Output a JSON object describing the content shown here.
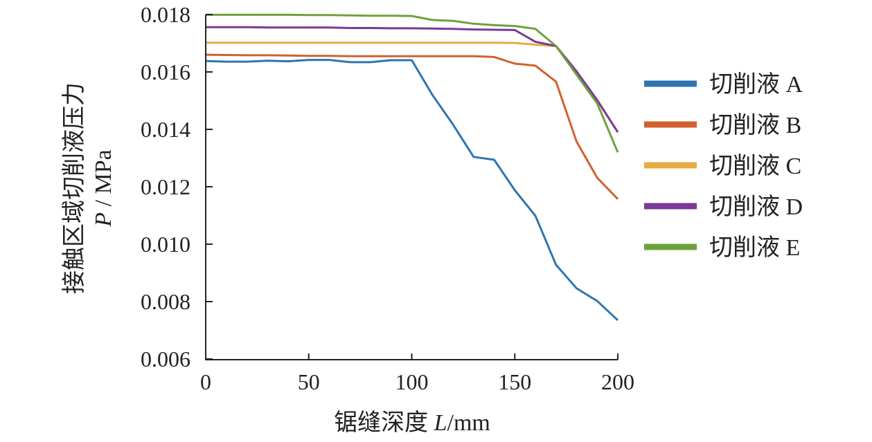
{
  "chart_data": {
    "type": "line",
    "title": "",
    "xlabel": "锯缝深度 L/mm",
    "xlabel_main": "锯缝深度 ",
    "xlabel_var": "L",
    "xlabel_unit": "/mm",
    "ylabel_line1": "接触区域切削液压力",
    "ylabel_var": "P",
    "ylabel_unit": " / MPa",
    "xlim": [
      0,
      200
    ],
    "ylim": [
      0.006,
      0.018
    ],
    "xticks": [
      "0",
      "50",
      "100",
      "150",
      "200"
    ],
    "xtick_values": [
      0,
      50,
      100,
      150,
      200
    ],
    "yticks": [
      "0.006",
      "0.008",
      "0.010",
      "0.012",
      "0.014",
      "0.016",
      "0.018"
    ],
    "ytick_values": [
      0.006,
      0.008,
      0.01,
      0.012,
      0.014,
      0.016,
      0.018
    ],
    "legend_position": "right",
    "x": [
      0,
      10,
      20,
      30,
      40,
      50,
      60,
      70,
      80,
      90,
      100,
      110,
      120,
      130,
      140,
      150,
      160,
      170,
      180,
      190,
      200
    ],
    "series": [
      {
        "name": "切削液 A",
        "color": "#2e75b0",
        "values": [
          0.01638,
          0.01636,
          0.01636,
          0.01639,
          0.01637,
          0.01642,
          0.01642,
          0.01634,
          0.01634,
          0.01641,
          0.01641,
          0.0152,
          0.01417,
          0.01304,
          0.01294,
          0.01188,
          0.01099,
          0.00928,
          0.00846,
          0.00802,
          0.00735
        ]
      },
      {
        "name": "切削液 B",
        "color": "#d1602e",
        "values": [
          0.0166,
          0.01659,
          0.01658,
          0.01658,
          0.01657,
          0.01656,
          0.01656,
          0.01655,
          0.01655,
          0.01655,
          0.01655,
          0.01655,
          0.01655,
          0.01655,
          0.01652,
          0.01629,
          0.01622,
          0.01566,
          0.01357,
          0.01231,
          0.01157
        ]
      },
      {
        "name": "切削液 C",
        "color": "#e6ab42",
        "values": [
          0.01702,
          0.01702,
          0.01702,
          0.01702,
          0.01702,
          0.01702,
          0.01702,
          0.01702,
          0.01702,
          0.01702,
          0.01702,
          0.01702,
          0.01702,
          0.01702,
          0.01702,
          0.01701,
          0.01695,
          0.0169,
          0.016,
          0.015,
          0.0139
        ]
      },
      {
        "name": "切削液 D",
        "color": "#7a3a96",
        "values": [
          0.01756,
          0.01756,
          0.01756,
          0.01755,
          0.01755,
          0.01755,
          0.01755,
          0.01753,
          0.01753,
          0.01752,
          0.01752,
          0.01751,
          0.0175,
          0.01748,
          0.01747,
          0.01746,
          0.01705,
          0.0169,
          0.01602,
          0.01502,
          0.0139
        ]
      },
      {
        "name": "切削液 E",
        "color": "#6ea13c",
        "values": [
          0.01799,
          0.01799,
          0.01799,
          0.01799,
          0.01799,
          0.01798,
          0.01798,
          0.01797,
          0.01796,
          0.01796,
          0.01795,
          0.01781,
          0.01778,
          0.01768,
          0.01763,
          0.0176,
          0.0175,
          0.0169,
          0.0159,
          0.0149,
          0.0132
        ]
      }
    ]
  }
}
